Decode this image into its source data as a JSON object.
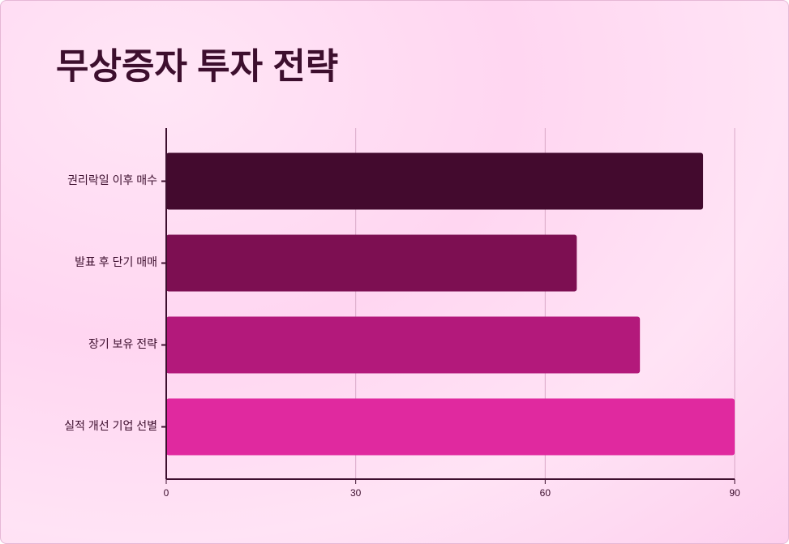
{
  "chart_data": {
    "type": "bar",
    "orientation": "horizontal",
    "title": "무상증자 투자 전략",
    "categories": [
      "권리락일 이후 매수",
      "발표 후 단기 매매",
      "장기 보유 전략",
      "실적 개선 기업 선별"
    ],
    "values": [
      85,
      65,
      75,
      90
    ],
    "colors": [
      "#430a2e",
      "#7d0f52",
      "#b3197b",
      "#e0299f"
    ],
    "xlim": [
      0,
      90
    ],
    "xticks": [
      0,
      30,
      60,
      90
    ],
    "grid": true
  }
}
